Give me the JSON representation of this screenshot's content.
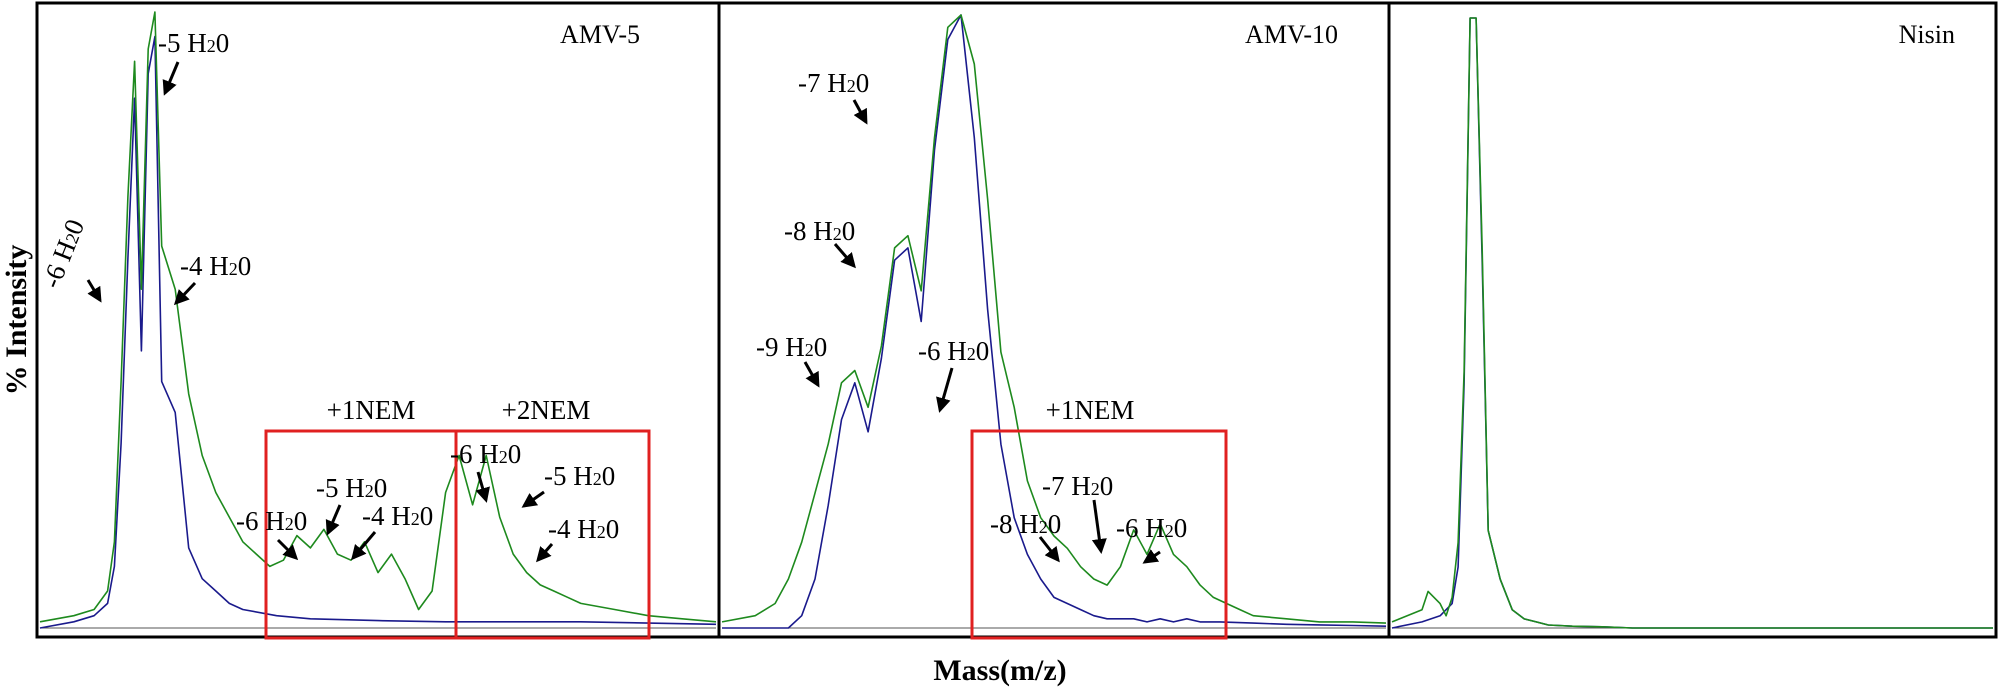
{
  "chart_data": {
    "type": "line",
    "xlabel": "Mass(m/z)",
    "ylabel": "% Intensity",
    "panels": [
      {
        "title": "AMV-5",
        "series": [
          {
            "color": "#1a1a8c",
            "x": [
              0,
              5,
              8,
              10,
              11,
              12,
              13,
              14,
              15,
              16,
              17,
              18,
              20,
              22,
              24,
              26,
              28,
              30,
              35,
              40,
              50,
              60,
              70,
              80,
              90,
              100
            ],
            "y": [
              0,
              1,
              2,
              4,
              10,
              30,
              60,
              86,
              45,
              90,
              96,
              40,
              35,
              13,
              8,
              6,
              4,
              3,
              2,
              1.5,
              1.2,
              1,
              1,
              1,
              0.8,
              0.6
            ]
          },
          {
            "color": "#1e8a1e",
            "x": [
              0,
              5,
              8,
              10,
              11,
              12,
              13,
              14,
              15,
              16,
              17,
              18,
              20,
              22,
              24,
              26,
              28,
              30,
              32,
              34,
              36,
              38,
              40,
              42,
              44,
              46,
              48,
              50,
              52,
              54,
              56,
              58,
              60,
              62,
              64,
              66,
              68,
              70,
              72,
              74,
              76,
              78,
              80,
              85,
              90,
              95,
              100
            ],
            "y": [
              1,
              2,
              3,
              6,
              14,
              40,
              70,
              92,
              55,
              94,
              100,
              62,
              55,
              38,
              28,
              22,
              18,
              14,
              12,
              10,
              11,
              15,
              13,
              16,
              12,
              11,
              14,
              9,
              12,
              8,
              3,
              6,
              22,
              28,
              20,
              28,
              18,
              12,
              9,
              7,
              6,
              5,
              4,
              3,
              2,
              1.5,
              1
            ]
          }
        ],
        "annotations": [
          {
            "text": "-6 H",
            "sub": "2",
            "after": "0",
            "x": 14,
            "y": 55
          },
          {
            "text": "-5 H",
            "sub": "2",
            "after": "0",
            "x": 17,
            "y": 96
          },
          {
            "text": "-4 H",
            "sub": "2",
            "after": "0",
            "x": 20,
            "y": 55
          },
          {
            "text": "-6 H",
            "sub": "2",
            "after": "0",
            "x": 38,
            "y": 15
          },
          {
            "text": "-5 H",
            "sub": "2",
            "after": "0",
            "x": 42,
            "y": 16
          },
          {
            "text": "-4 H",
            "sub": "2",
            "after": "0",
            "x": 46,
            "y": 11
          },
          {
            "text": "-6 H",
            "sub": "2",
            "after": "0",
            "x": 62,
            "y": 28
          },
          {
            "text": "-5 H",
            "sub": "2",
            "after": "0",
            "x": 66,
            "y": 28
          },
          {
            "text": "-4 H",
            "sub": "2",
            "after": "0",
            "x": 70,
            "y": 12
          }
        ],
        "boxes": [
          {
            "label": "+1NEM"
          },
          {
            "label": "+2NEM"
          }
        ]
      },
      {
        "title": "AMV-10",
        "series": [
          {
            "color": "#1a1a8c",
            "x": [
              0,
              10,
              12,
              14,
              16,
              18,
              20,
              22,
              24,
              26,
              28,
              30,
              32,
              34,
              36,
              38,
              40,
              42,
              44,
              46,
              48,
              50,
              52,
              54,
              56,
              58,
              60,
              62,
              64,
              66,
              68,
              70,
              72,
              75,
              80,
              85,
              90,
              95,
              100
            ],
            "y": [
              0,
              0,
              2,
              8,
              20,
              34,
              40,
              32,
              44,
              60,
              62,
              50,
              78,
              96,
              100,
              80,
              52,
              30,
              18,
              12,
              8,
              5,
              4,
              3,
              2,
              1.5,
              1.5,
              1.5,
              1,
              1.5,
              1,
              1.5,
              1,
              1,
              0.8,
              0.6,
              0.5,
              0.4,
              0.3
            ]
          },
          {
            "color": "#1e8a1e",
            "x": [
              0,
              5,
              8,
              10,
              12,
              14,
              16,
              18,
              20,
              22,
              24,
              26,
              28,
              30,
              32,
              34,
              36,
              38,
              40,
              42,
              44,
              46,
              48,
              50,
              52,
              54,
              56,
              58,
              60,
              62,
              64,
              66,
              68,
              70,
              72,
              74,
              76,
              78,
              80,
              85,
              90,
              95,
              100
            ],
            "y": [
              1,
              2,
              4,
              8,
              14,
              22,
              30,
              40,
              42,
              36,
              46,
              62,
              64,
              55,
              80,
              98,
              100,
              92,
              70,
              45,
              36,
              24,
              18,
              15,
              13,
              10,
              8,
              7,
              10,
              16,
              12,
              17,
              12,
              10,
              7,
              5,
              4,
              3,
              2,
              1.5,
              1,
              1,
              0.8
            ]
          }
        ],
        "annotations": [
          {
            "text": "-7 H",
            "sub": "2",
            "after": "0",
            "x": 32,
            "y": 80
          },
          {
            "text": "-8 H",
            "sub": "2",
            "after": "0",
            "x": 28,
            "y": 60
          },
          {
            "text": "-9 H",
            "sub": "2",
            "after": "0",
            "x": 22,
            "y": 40
          },
          {
            "text": "-6 H",
            "sub": "2",
            "after": "0",
            "x": 42,
            "y": 38
          },
          {
            "text": "-8 H",
            "sub": "2",
            "after": "0",
            "x": 60,
            "y": 15
          },
          {
            "text": "-7 H",
            "sub": "2",
            "after": "0",
            "x": 64,
            "y": 15
          },
          {
            "text": "-6 H",
            "sub": "2",
            "after": "0",
            "x": 68,
            "y": 12
          }
        ],
        "boxes": [
          {
            "label": "+1NEM"
          }
        ]
      },
      {
        "title": "Nisin",
        "series": [
          {
            "color": "#1a1a8c",
            "x": [
              0,
              5,
              8,
              10,
              11,
              12,
              13,
              14,
              15,
              16,
              18,
              20,
              22,
              24,
              26,
              30,
              35,
              40,
              100
            ],
            "y": [
              0,
              1,
              2,
              4,
              10,
              40,
              100,
              100,
              60,
              16,
              8,
              3,
              1.5,
              1,
              0.5,
              0.3,
              0.2,
              0,
              0
            ]
          },
          {
            "color": "#1e8a1e",
            "x": [
              0,
              5,
              6,
              8,
              9,
              10,
              11,
              12,
              13,
              14,
              15,
              16,
              18,
              20,
              22,
              24,
              26,
              30,
              35,
              40,
              100
            ],
            "y": [
              1,
              3,
              6,
              4,
              2,
              5,
              14,
              42,
              100,
              100,
              62,
              16,
              8,
              3,
              1.5,
              1,
              0.5,
              0.3,
              0.2,
              0,
              0
            ]
          }
        ],
        "annotations": [],
        "boxes": []
      }
    ]
  }
}
